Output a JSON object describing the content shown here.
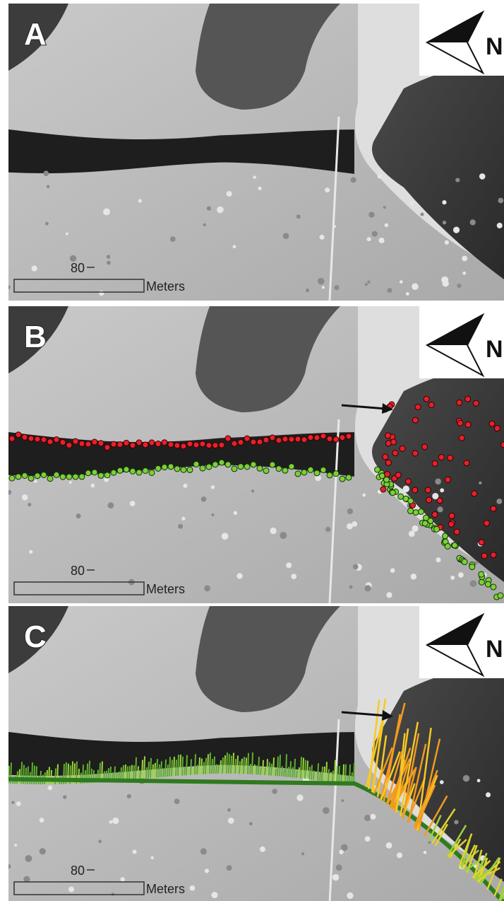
{
  "panels": [
    {
      "label": "A",
      "north": "N",
      "scale_value": "80",
      "scale_unit": "Meters"
    },
    {
      "label": "B",
      "north": "N",
      "scale_value": "80",
      "scale_unit": "Meters"
    },
    {
      "label": "C",
      "north": "N",
      "scale_value": "80",
      "scale_unit": "Meters"
    }
  ]
}
